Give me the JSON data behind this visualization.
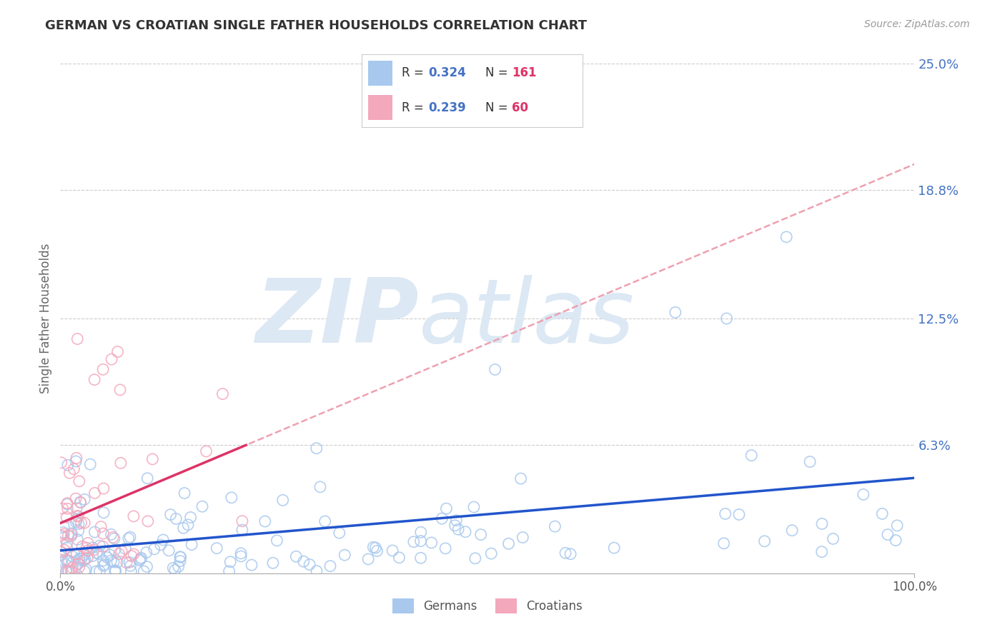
{
  "title": "GERMAN VS CROATIAN SINGLE FATHER HOUSEHOLDS CORRELATION CHART",
  "source": "Source: ZipAtlas.com",
  "ylabel": "Single Father Households",
  "xlim": [
    0,
    1.0
  ],
  "ylim": [
    0,
    0.25
  ],
  "yticks": [
    0.0,
    0.063,
    0.125,
    0.188,
    0.25
  ],
  "ytick_labels": [
    "",
    "6.3%",
    "12.5%",
    "18.8%",
    "25.0%"
  ],
  "german_R": 0.324,
  "german_N": 161,
  "croatian_R": 0.239,
  "croatian_N": 60,
  "german_color": "#A8C8EE",
  "croatian_color": "#F4A8BC",
  "german_line_color": "#2255CC",
  "croatian_line_color": "#DD3366",
  "dashed_line_color": "#EEA0B0",
  "background_color": "#FFFFFF",
  "watermark_color": "#DCE8F4",
  "title_color": "#333333",
  "axis_label_color": "#666666",
  "tick_color": "#4472C4",
  "legend_R_color": "#4472C4",
  "legend_N_color": "#DD3366",
  "legend_label_color": "#333333"
}
